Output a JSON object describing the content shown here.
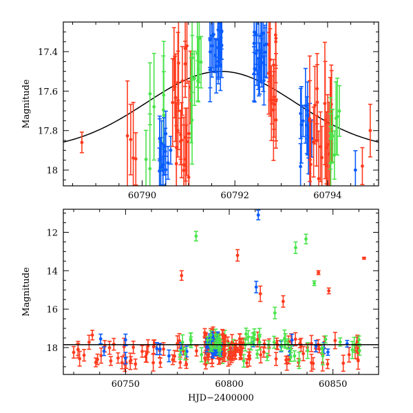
{
  "colors": {
    "red": "#ff3b1e",
    "green": "#4be44b",
    "blue": "#0a5cff",
    "fit": "#000000"
  },
  "chart_data": [
    {
      "type": "scatter",
      "name": "zoom-panel",
      "xlim": [
        60788.3,
        60795.1
      ],
      "ylim": [
        18.08,
        17.25
      ],
      "y_inverted": true,
      "xticks": [
        60790,
        60792,
        60794
      ],
      "yticks": [
        17.4,
        17.6,
        17.8,
        18
      ],
      "ytick_labels": [
        "17.4",
        "17.6",
        "17.8",
        "18"
      ],
      "xlabel": "",
      "ylabel": "Magnitude",
      "fit_curve": {
        "peak_x": 60791.7,
        "peak_y": 17.5,
        "base_y": 17.9,
        "width": 1.6
      },
      "clusters": [
        {
          "color": "red",
          "x_from": 60788.7,
          "x_to": 60788.7,
          "n": 1,
          "y_from": 17.86,
          "y_to": 17.86,
          "err": 0.09
        },
        {
          "color": "red",
          "x_from": 60789.68,
          "x_to": 60789.9,
          "n": 4,
          "y_from": 17.82,
          "y_to": 17.95,
          "err": 0.25
        },
        {
          "color": "green",
          "x_from": 60790.0,
          "x_to": 60790.5,
          "n": 8,
          "y_from": 17.6,
          "y_to": 18.0,
          "err": 0.22
        },
        {
          "color": "blue",
          "x_from": 60790.35,
          "x_to": 60790.65,
          "n": 14,
          "y_from": 17.8,
          "y_to": 18.08,
          "err": 0.12
        },
        {
          "color": "red",
          "x_from": 60790.65,
          "x_to": 60791.05,
          "n": 26,
          "y_from": 17.35,
          "y_to": 18.05,
          "err": 0.22
        },
        {
          "color": "green",
          "x_from": 60791.05,
          "x_to": 60791.3,
          "n": 10,
          "y_from": 17.3,
          "y_to": 17.75,
          "err": 0.18
        },
        {
          "color": "blue",
          "x_from": 60791.45,
          "x_to": 60791.75,
          "n": 20,
          "y_from": 17.25,
          "y_to": 17.5,
          "err": 0.15
        },
        {
          "color": "blue",
          "x_from": 60792.4,
          "x_to": 60792.7,
          "n": 20,
          "y_from": 17.3,
          "y_to": 17.55,
          "err": 0.15
        },
        {
          "color": "red",
          "x_from": 60792.7,
          "x_to": 60792.9,
          "n": 14,
          "y_from": 17.3,
          "y_to": 17.75,
          "err": 0.2
        },
        {
          "color": "blue",
          "x_from": 60793.4,
          "x_to": 60793.7,
          "n": 14,
          "y_from": 17.65,
          "y_to": 18.05,
          "err": 0.15
        },
        {
          "color": "red",
          "x_from": 60793.6,
          "x_to": 60794.1,
          "n": 20,
          "y_from": 17.55,
          "y_to": 18.05,
          "err": 0.25
        },
        {
          "color": "green",
          "x_from": 60794.05,
          "x_to": 60794.3,
          "n": 8,
          "y_from": 17.7,
          "y_to": 18.05,
          "err": 0.22
        },
        {
          "color": "blue",
          "x_from": 60794.6,
          "x_to": 60794.6,
          "n": 1,
          "y_from": 18.0,
          "y_to": 18.0,
          "err": 0.08
        },
        {
          "color": "red",
          "x_from": 60794.75,
          "x_to": 60794.75,
          "n": 1,
          "y_from": 17.98,
          "y_to": 17.98,
          "err": 0.1
        },
        {
          "color": "red",
          "x_from": 60794.92,
          "x_to": 60794.92,
          "n": 1,
          "y_from": 17.8,
          "y_to": 17.8,
          "err": 0.22
        }
      ]
    },
    {
      "type": "scatter",
      "name": "full-panel",
      "xlim": [
        60720,
        60872
      ],
      "ylim": [
        19.4,
        10.8
      ],
      "y_inverted": true,
      "xticks": [
        60750,
        60800,
        60850
      ],
      "yticks": [
        12,
        14,
        16,
        18
      ],
      "ytick_labels": [
        "12",
        "14",
        "16",
        "18"
      ],
      "xlabel": "HJD−2400000",
      "ylabel": "Magnitude",
      "hline_y": 17.85,
      "baseline_clusters": [
        {
          "color": "red",
          "x_from": 60726,
          "x_to": 60868,
          "n": 95,
          "y_from": 17.5,
          "y_to": 18.9,
          "err": 0.35
        },
        {
          "color": "blue",
          "x_from": 60738,
          "x_to": 60866,
          "n": 16,
          "y_from": 17.6,
          "y_to": 18.6,
          "err": 0.25
        },
        {
          "color": "green",
          "x_from": 60776,
          "x_to": 60864,
          "n": 45,
          "y_from": 17.2,
          "y_to": 18.7,
          "err": 0.35
        }
      ],
      "points": [
        {
          "x": 60725,
          "y": 18.25,
          "err": 0.3,
          "color": "red"
        },
        {
          "x": 60730,
          "y": 18.4,
          "err": 0.3,
          "color": "red"
        },
        {
          "x": 60734,
          "y": 17.35,
          "err": 0.25,
          "color": "red"
        },
        {
          "x": 60738,
          "y": 17.55,
          "err": 0.25,
          "color": "blue"
        },
        {
          "x": 60750,
          "y": 17.6,
          "err": 0.3,
          "color": "blue"
        },
        {
          "x": 60750,
          "y": 18.55,
          "err": 0.3,
          "color": "blue"
        },
        {
          "x": 60758,
          "y": 18.2,
          "err": 0.3,
          "color": "red"
        },
        {
          "x": 60777,
          "y": 14.25,
          "err": 0.25,
          "color": "red"
        },
        {
          "x": 60784,
          "y": 12.2,
          "err": 0.25,
          "color": "green"
        },
        {
          "x": 60804,
          "y": 13.2,
          "err": 0.3,
          "color": "red"
        },
        {
          "x": 60813,
          "y": 14.85,
          "err": 0.3,
          "color": "blue"
        },
        {
          "x": 60814,
          "y": 11.1,
          "err": 0.25,
          "color": "blue"
        },
        {
          "x": 60815,
          "y": 15.2,
          "err": 0.4,
          "color": "red"
        },
        {
          "x": 60822,
          "y": 16.2,
          "err": 0.3,
          "color": "green"
        },
        {
          "x": 60826,
          "y": 15.6,
          "err": 0.3,
          "color": "red"
        },
        {
          "x": 60832,
          "y": 12.8,
          "err": 0.3,
          "color": "green"
        },
        {
          "x": 60837,
          "y": 12.35,
          "err": 0.25,
          "color": "green"
        },
        {
          "x": 60841,
          "y": 14.65,
          "err": 0.12,
          "color": "green"
        },
        {
          "x": 60843,
          "y": 14.1,
          "err": 0.1,
          "color": "red"
        },
        {
          "x": 60848,
          "y": 15.05,
          "err": 0.15,
          "color": "red"
        },
        {
          "x": 60865,
          "y": 13.35,
          "err": 0.05,
          "color": "red"
        }
      ],
      "dense_peak_clusters": [
        {
          "color": "red",
          "x_from": 60788,
          "x_to": 60798,
          "n": 50,
          "y_from": 17.0,
          "y_to": 18.6,
          "err": 0.25
        },
        {
          "color": "blue",
          "x_from": 60789,
          "x_to": 60796,
          "n": 24,
          "y_from": 17.4,
          "y_to": 18.4,
          "err": 0.2
        },
        {
          "color": "green",
          "x_from": 60789,
          "x_to": 60796,
          "n": 16,
          "y_from": 17.3,
          "y_to": 18.2,
          "err": 0.25
        },
        {
          "color": "red",
          "x_from": 60800,
          "x_to": 60806,
          "n": 20,
          "y_from": 17.8,
          "y_to": 18.6,
          "err": 0.25
        }
      ]
    }
  ]
}
